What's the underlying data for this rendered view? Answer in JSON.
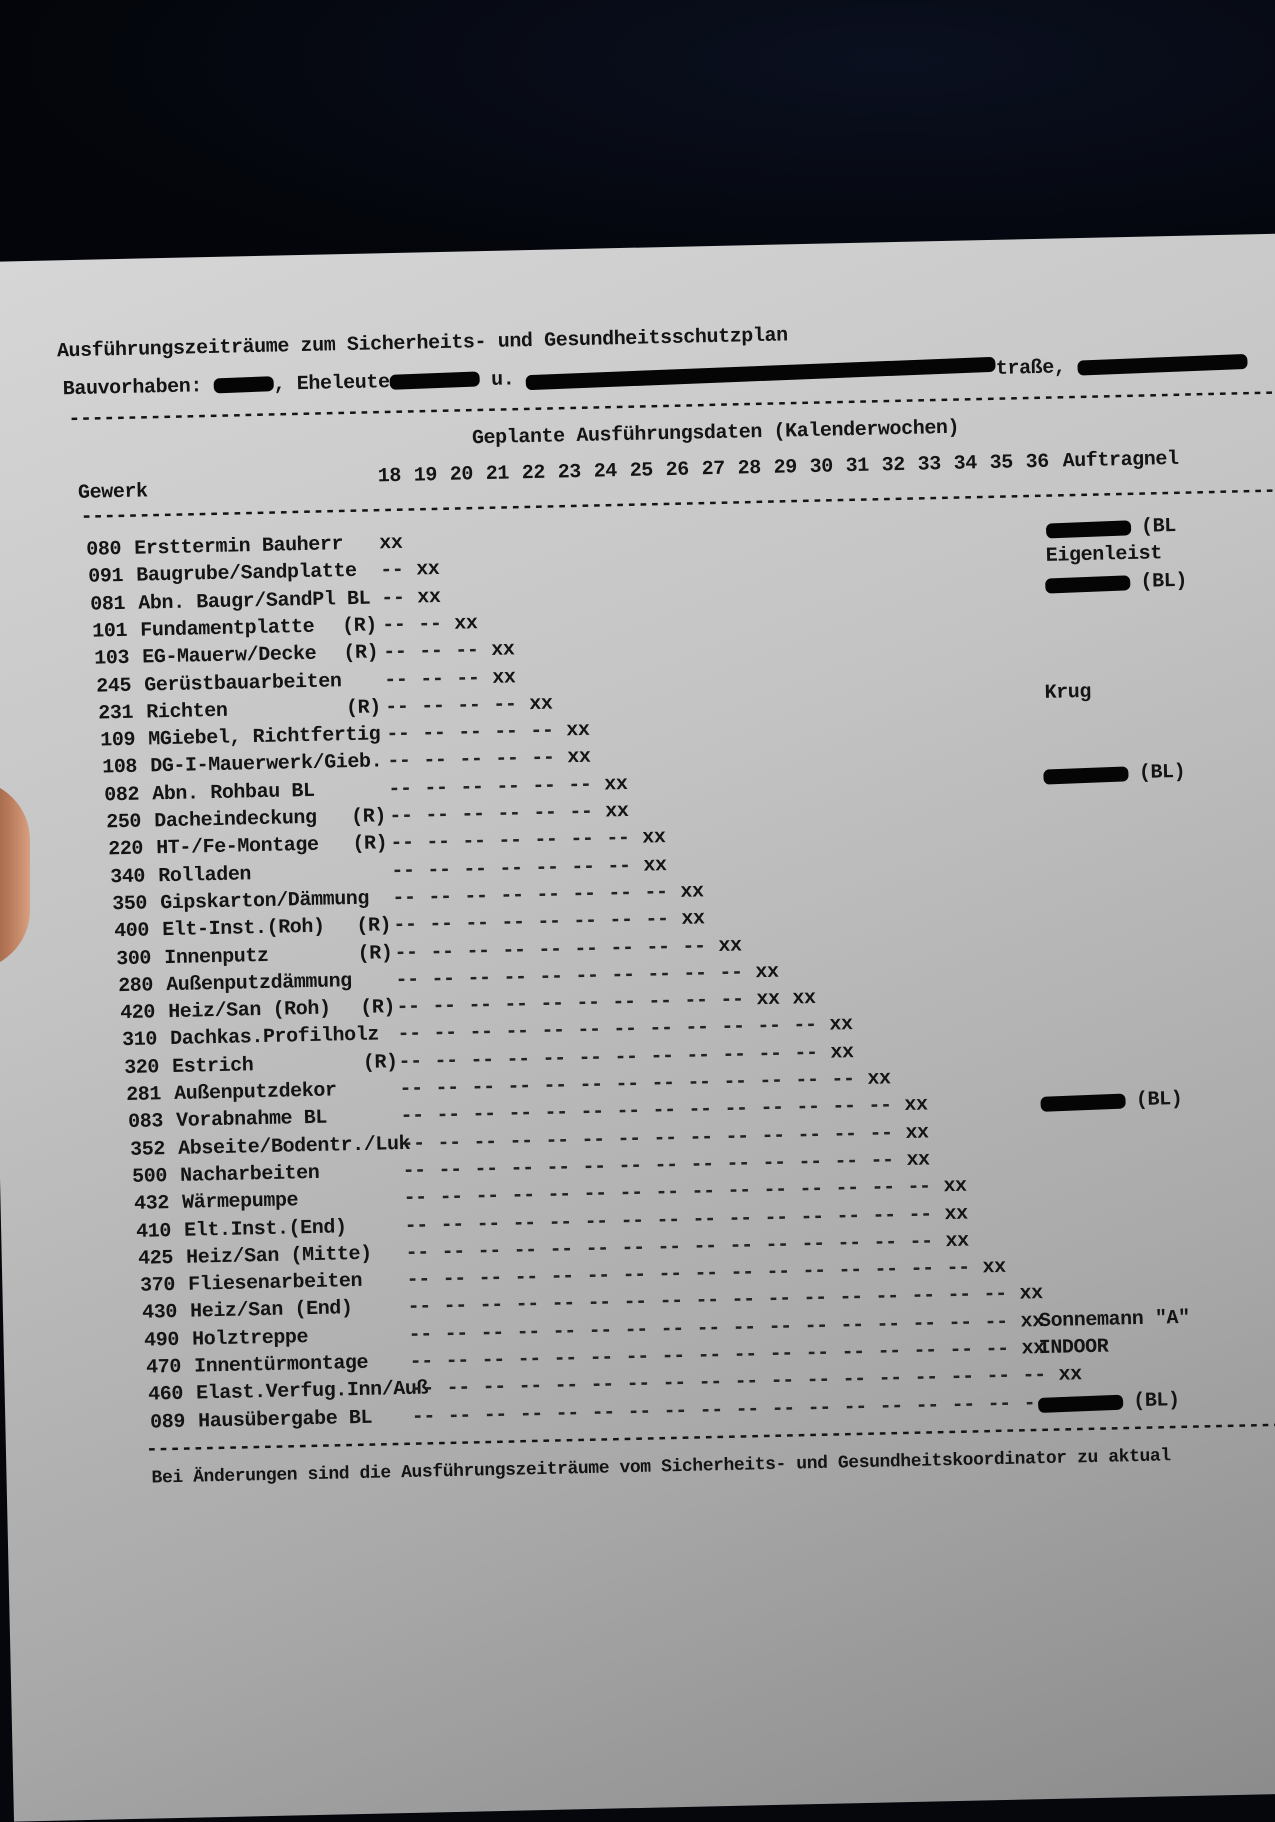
{
  "header": {
    "title": "Ausführungszeiträume zum Sicherheits- und Gesundheitsschutzplan",
    "project_label": "Bauvorhaben:",
    "project_part2": ", Eheleute",
    "project_part3": "u.",
    "project_part4": "traße,"
  },
  "table": {
    "dates_heading": "Geplante Ausführungsdaten (Kalenderwochen)",
    "col_gewerk": "Gewerk",
    "weeks": [
      "18",
      "19",
      "20",
      "21",
      "22",
      "23",
      "24",
      "25",
      "26",
      "27",
      "28",
      "29",
      "30",
      "31",
      "32",
      "33",
      "34",
      "35",
      "36"
    ],
    "col_contractor": "Auftragnel",
    "mark_planned": "xx",
    "mark_lead": "--",
    "rows": [
      {
        "code": "080",
        "name": "Ersttermin Bauherr",
        "flag": "",
        "xx": [
          18
        ],
        "contractor": {
          "redacted": true,
          "text": "(BL"
        }
      },
      {
        "code": "091",
        "name": "Baugrube/Sandplatte",
        "flag": "",
        "xx": [
          19
        ],
        "contractor": {
          "redacted": false,
          "text": "Eigenleist"
        }
      },
      {
        "code": "081",
        "name": "Abn. Baugr/SandPl BL",
        "flag": "",
        "xx": [
          19
        ],
        "contractor": {
          "redacted": true,
          "text": "(BL)"
        }
      },
      {
        "code": "101",
        "name": "Fundamentplatte",
        "flag": "(R)",
        "xx": [
          20
        ],
        "contractor": null
      },
      {
        "code": "103",
        "name": "EG-Mauerw/Decke",
        "flag": "(R)",
        "xx": [
          21
        ],
        "contractor": null
      },
      {
        "code": "245",
        "name": "Gerüstbauarbeiten",
        "flag": "",
        "xx": [
          21
        ],
        "contractor": null
      },
      {
        "code": "231",
        "name": "Richten",
        "flag": "(R)",
        "xx": [
          22
        ],
        "contractor": {
          "redacted": false,
          "text": "Krug"
        }
      },
      {
        "code": "109",
        "name": "MGiebel, Richtfertig",
        "flag": "",
        "xx": [
          23
        ],
        "contractor": null
      },
      {
        "code": "108",
        "name": "DG-I-Mauerwerk/Gieb.",
        "flag": "",
        "xx": [
          23
        ],
        "contractor": null
      },
      {
        "code": "082",
        "name": "Abn. Rohbau BL",
        "flag": "",
        "xx": [
          24
        ],
        "contractor": {
          "redacted": true,
          "text": "(BL)"
        }
      },
      {
        "code": "250",
        "name": "Dacheindeckung",
        "flag": "(R)",
        "xx": [
          24
        ],
        "contractor": null
      },
      {
        "code": "220",
        "name": "HT-/Fe-Montage",
        "flag": "(R)",
        "xx": [
          25
        ],
        "contractor": null
      },
      {
        "code": "340",
        "name": "Rolladen",
        "flag": "",
        "xx": [
          25
        ],
        "contractor": null
      },
      {
        "code": "350",
        "name": "Gipskarton/Dämmung",
        "flag": "",
        "xx": [
          26
        ],
        "contractor": null
      },
      {
        "code": "400",
        "name": "Elt-Inst.(Roh)",
        "flag": "(R)",
        "xx": [
          26
        ],
        "contractor": null
      },
      {
        "code": "300",
        "name": "Innenputz",
        "flag": "(R)",
        "xx": [
          27
        ],
        "contractor": null
      },
      {
        "code": "280",
        "name": "Außenputzdämmung",
        "flag": "",
        "xx": [
          28
        ],
        "contractor": null
      },
      {
        "code": "420",
        "name": "Heiz/San (Roh)",
        "flag": "(R)",
        "xx": [
          28,
          29
        ],
        "contractor": null
      },
      {
        "code": "310",
        "name": "Dachkas.Profilholz",
        "flag": "",
        "xx": [
          30
        ],
        "contractor": null
      },
      {
        "code": "320",
        "name": "Estrich",
        "flag": "(R)",
        "xx": [
          30
        ],
        "contractor": null
      },
      {
        "code": "281",
        "name": "Außenputzdekor",
        "flag": "",
        "xx": [
          31
        ],
        "contractor": null
      },
      {
        "code": "083",
        "name": "Vorabnahme BL",
        "flag": "",
        "xx": [
          32
        ],
        "contractor": {
          "redacted": true,
          "text": "(BL)"
        }
      },
      {
        "code": "352",
        "name": "Abseite/Bodentr./Luk",
        "flag": "",
        "xx": [
          32
        ],
        "contractor": null
      },
      {
        "code": "500",
        "name": "Nacharbeiten",
        "flag": "",
        "xx": [
          32
        ],
        "contractor": null
      },
      {
        "code": "432",
        "name": "Wärmepumpe",
        "flag": "",
        "xx": [
          33
        ],
        "contractor": null
      },
      {
        "code": "410",
        "name": "Elt.Inst.(End)",
        "flag": "",
        "xx": [
          33
        ],
        "contractor": null
      },
      {
        "code": "425",
        "name": "Heiz/San (Mitte)",
        "flag": "",
        "xx": [
          33
        ],
        "contractor": null
      },
      {
        "code": "370",
        "name": "Fliesenarbeiten",
        "flag": "",
        "xx": [
          34
        ],
        "contractor": null
      },
      {
        "code": "430",
        "name": "Heiz/San (End)",
        "flag": "",
        "xx": [
          35
        ],
        "contractor": null
      },
      {
        "code": "490",
        "name": "Holztreppe",
        "flag": "",
        "xx": [
          35
        ],
        "contractor": {
          "redacted": false,
          "text": "Sonnemann \"A\""
        }
      },
      {
        "code": "470",
        "name": "Innentürmontage",
        "flag": "",
        "xx": [
          35
        ],
        "contractor": {
          "redacted": false,
          "text": "INDOOR"
        }
      },
      {
        "code": "460",
        "name": "Elast.Verfug.Inn/Auß",
        "flag": "",
        "xx": [
          36
        ],
        "contractor": null
      },
      {
        "code": "089",
        "name": "Hausübergabe BL",
        "flag": "",
        "xx": [
          36
        ],
        "contractor": {
          "redacted": true,
          "text": "(BL)"
        }
      }
    ]
  },
  "footer": {
    "note": "Bei Änderungen sind die Ausführungszeiträume vom Sicherheits- und Gesundheitskoordinator zu aktual"
  }
}
